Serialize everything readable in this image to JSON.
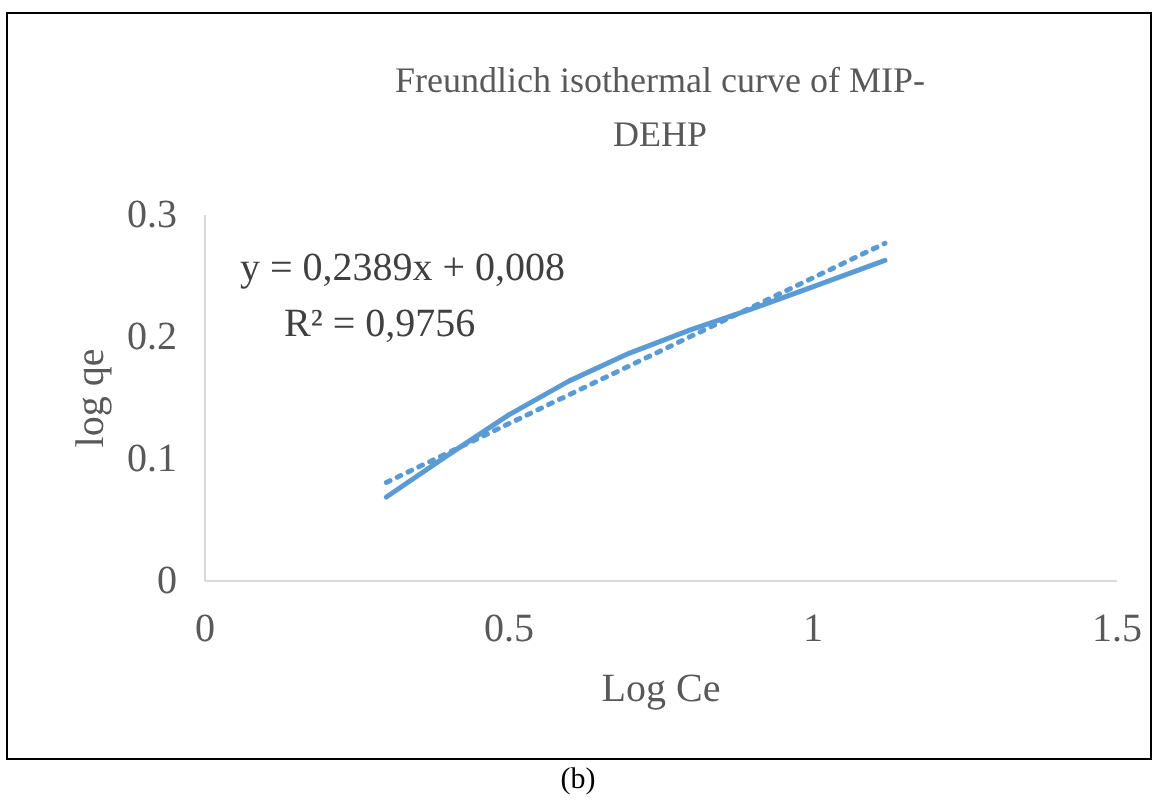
{
  "chart_data": {
    "type": "line",
    "title": "Freundlich isothermal curve of MIP-DEHP",
    "xlabel": "Log Ce",
    "ylabel": "log qe",
    "xlim": [
      0,
      1.5
    ],
    "xticks": [
      0,
      0.5,
      1,
      1.5
    ],
    "ylim": [
      0,
      0.3
    ],
    "yticks": [
      0,
      0.1,
      0.2,
      0.3
    ],
    "grid": false,
    "marker": "none",
    "series": [
      {
        "color": "#5b9bd5",
        "line_style": "solid",
        "x": [
          0.3,
          0.4,
          0.5,
          0.6,
          0.7,
          0.8,
          0.9,
          1.0,
          1.12
        ],
        "values": [
          0.068,
          0.102,
          0.135,
          0.163,
          0.186,
          0.205,
          0.222,
          0.24,
          0.262
        ]
      },
      {
        "type": "line",
        "color": "#5b9bd5",
        "line_style": "dotted",
        "x": [
          0.3,
          1.12
        ],
        "values": [
          0.08,
          0.276
        ]
      }
    ],
    "annotations": [
      "y = 0,2389x + 0,008",
      "R² = 0,9756",
      "(b)"
    ]
  }
}
